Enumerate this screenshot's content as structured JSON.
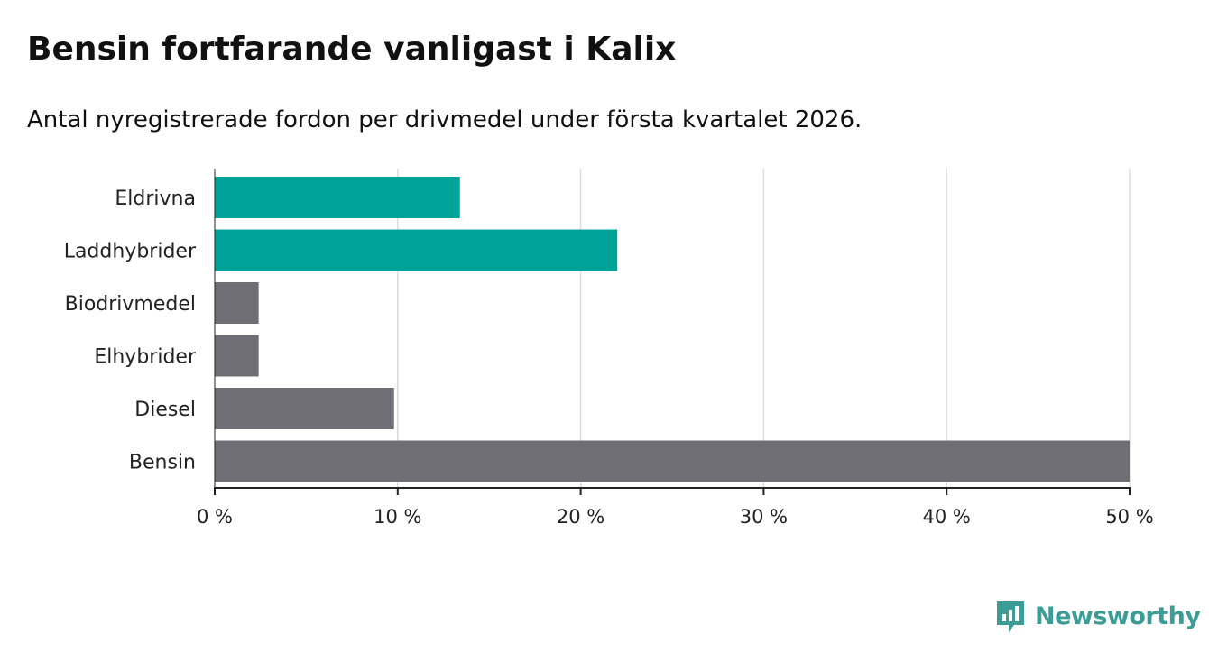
{
  "title": "Bensin fortfarande vanligast i Kalix",
  "subtitle": "Antal nyregistrerade fordon per drivmedel under första kvartalet 2026.",
  "brand": "Newsworthy",
  "colors": {
    "highlight": "#00a398",
    "default": "#6f6e74",
    "grid": "#dddddd",
    "brand": "#3e9c97",
    "axis": "#222222"
  },
  "chart_data": {
    "type": "bar",
    "orientation": "horizontal",
    "title": "Bensin fortfarande vanligast i Kalix",
    "subtitle": "Antal nyregistrerade fordon per drivmedel under första kvartalet 2026.",
    "categories": [
      "Eldrivna",
      "Laddhybrider",
      "Biodrivmedel",
      "Elhybrider",
      "Diesel",
      "Bensin"
    ],
    "values": [
      13.4,
      22.0,
      2.4,
      2.4,
      9.8,
      50.0
    ],
    "highlighted": [
      true,
      true,
      false,
      false,
      false,
      false
    ],
    "xlim": [
      0,
      50
    ],
    "ticks": [
      0,
      10,
      20,
      30,
      40,
      50
    ],
    "tick_labels": [
      "0 %",
      "10 %",
      "20 %",
      "30 %",
      "40 %",
      "50 %"
    ],
    "xlabel": "",
    "ylabel": "",
    "grid": true
  }
}
